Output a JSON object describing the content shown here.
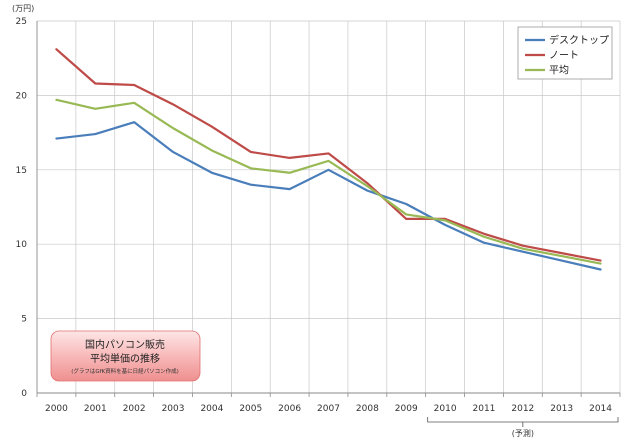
{
  "chart_data": {
    "type": "line",
    "unit_label": "(万円)",
    "x": [
      "2000",
      "2001",
      "2002",
      "2003",
      "2004",
      "2005",
      "2006",
      "2007",
      "2008",
      "2009",
      "2010",
      "2011",
      "2012",
      "2013",
      "2014"
    ],
    "yticks": [
      "0",
      "5",
      "10",
      "15",
      "20",
      "25"
    ],
    "ylim": [
      0,
      25
    ],
    "grid": true,
    "legend_position": "top-right",
    "series": [
      {
        "name": "デスクトップ",
        "color": "#4a7ebb",
        "values": [
          17.1,
          17.4,
          18.2,
          16.2,
          14.8,
          14.0,
          13.7,
          15.0,
          13.6,
          12.7,
          11.3,
          10.1,
          9.5,
          8.9,
          8.3
        ]
      },
      {
        "name": "ノート",
        "color": "#be4b48",
        "values": [
          23.1,
          20.8,
          20.7,
          19.4,
          17.9,
          16.2,
          15.8,
          16.1,
          14.1,
          11.7,
          11.7,
          10.7,
          9.9,
          9.4,
          8.9
        ]
      },
      {
        "name": "平均",
        "color": "#98b954",
        "values": [
          19.7,
          19.1,
          19.5,
          17.8,
          16.3,
          15.1,
          14.8,
          15.6,
          13.9,
          12.0,
          11.6,
          10.5,
          9.7,
          9.2,
          8.7
        ]
      }
    ],
    "forecast_label": "(予測)",
    "note": {
      "title_line1": "国内パソコン販売",
      "title_line2": "平均単価の推移",
      "subtitle": "(グラフはGfK資料を基に日経パソコン作成)"
    }
  }
}
